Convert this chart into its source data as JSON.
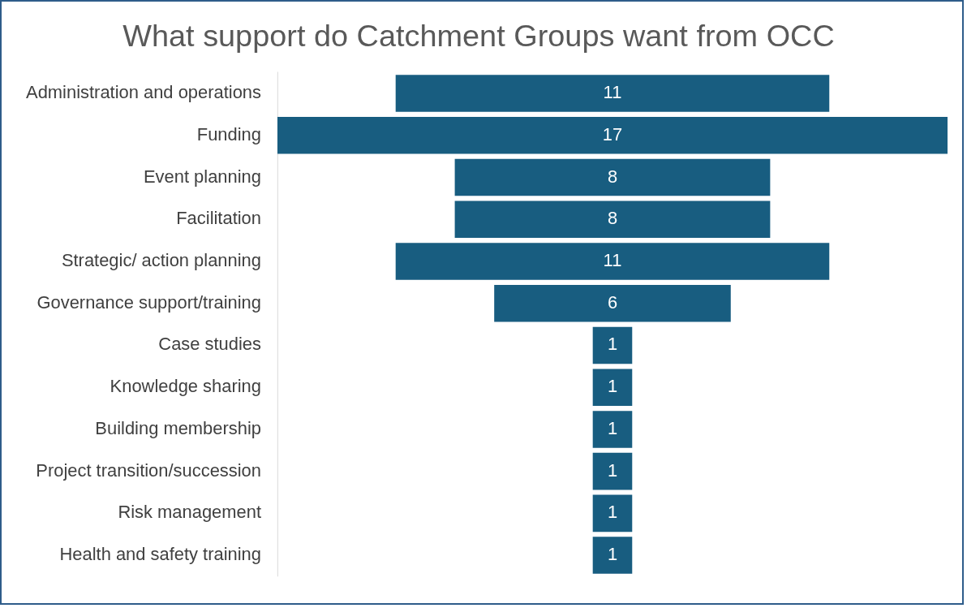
{
  "chart_data": {
    "type": "other",
    "title": "What support do Catchment Groups want from OCC",
    "categories": [
      "Administration and operations",
      "Funding",
      "Event planning",
      "Facilitation",
      "Strategic/ action planning",
      "Governance support/training",
      "Case studies",
      "Knowledge sharing",
      "Building membership",
      "Project transition/succession",
      "Risk management",
      "Health and safety training"
    ],
    "values": [
      11,
      17,
      8,
      8,
      11,
      6,
      1,
      1,
      1,
      1,
      1,
      1
    ],
    "color": "#185d80",
    "data_labels": true
  }
}
